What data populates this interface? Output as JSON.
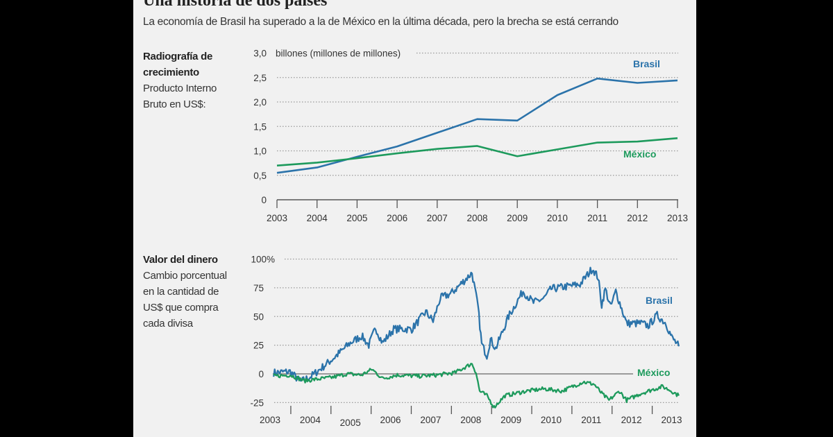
{
  "title": "Una historia de dos países",
  "subtitle": "La economía de Brasil ha superado a la de México en la última década, pero la brecha se está cerrando",
  "colors": {
    "brasil": "#2b73aa",
    "mexico": "#1d9a5c",
    "background": "#f1f1f1"
  },
  "chart_data": [
    {
      "type": "line",
      "heading": "Radiografía de crecimiento",
      "description": [
        "Producto Interno",
        "Bruto en US$:"
      ],
      "heading_lines": [
        "Radiografía de",
        "crecimiento"
      ],
      "unit_label": "billones (millones de millones)",
      "ylim": [
        0,
        3.0
      ],
      "yticks": [
        0,
        0.5,
        1.0,
        1.5,
        2.0,
        2.5,
        3.0
      ],
      "ytick_labels": [
        "0",
        "0,5",
        "1,0",
        "1,5",
        "2,0",
        "2,5",
        "3,0"
      ],
      "xlim": [
        2003,
        2013
      ],
      "x": [
        2003,
        2004,
        2005,
        2006,
        2007,
        2008,
        2009,
        2010,
        2011,
        2012,
        2013
      ],
      "xtick_labels": [
        "2003",
        "2004",
        "2005",
        "2006",
        "2007",
        "2008",
        "2009",
        "2010",
        "2011",
        "2012",
        "2013"
      ],
      "grid": "horizontal dotted",
      "series": [
        {
          "name": "Brasil",
          "values": [
            0.55,
            0.66,
            0.88,
            1.09,
            1.37,
            1.65,
            1.62,
            2.14,
            2.48,
            2.39,
            2.44
          ]
        },
        {
          "name": "México",
          "values": [
            0.7,
            0.76,
            0.85,
            0.95,
            1.04,
            1.1,
            0.89,
            1.03,
            1.17,
            1.19,
            1.26
          ]
        }
      ]
    },
    {
      "type": "line",
      "heading": "Valor del dinero",
      "description": [
        "Cambio porcentual",
        "en la cantidad de",
        "US$ que compra",
        "cada divisa"
      ],
      "ylim": [
        -25,
        100
      ],
      "yticks": [
        -25,
        0,
        25,
        50,
        75,
        100
      ],
      "ytick_labels": [
        "-25",
        "0",
        "25",
        "50",
        "75",
        "100%"
      ],
      "xlim": [
        2003,
        2013.2
      ],
      "xtick_labels": [
        "2003",
        "2004",
        "2005",
        "2006",
        "2007",
        "2008",
        "2009",
        "2010",
        "2011",
        "2012",
        "2013"
      ],
      "grid": "horizontal dotted",
      "series": [
        {
          "name": "Brasil",
          "x": [
            2003.09,
            2003.5,
            2003.76,
            2004.03,
            2004.56,
            2005.0,
            2005.28,
            2005.46,
            2005.63,
            2005.8,
            2006.08,
            2006.53,
            2006.88,
            2007.06,
            2007.24,
            2007.51,
            2008.03,
            2008.18,
            2008.27,
            2008.4,
            2008.49,
            2008.62,
            2008.94,
            2009.3,
            2009.56,
            2009.83,
            2010.0,
            2010.37,
            2010.72,
            2011.03,
            2011.17,
            2011.26,
            2011.35,
            2011.48,
            2011.61,
            2011.88,
            2012.24,
            2012.42,
            2012.64,
            2012.86,
            2013.0,
            2013.18
          ],
          "values": [
            1,
            2,
            -7,
            -2,
            13,
            27,
            33,
            25,
            40,
            27,
            39,
            39,
            54,
            46,
            66,
            70,
            88,
            58,
            26,
            16,
            30,
            22,
            50,
            72,
            62,
            66,
            74,
            76,
            78,
            92,
            84,
            60,
            74,
            58,
            72,
            44,
            44,
            42,
            51,
            44,
            32,
            24
          ]
        },
        {
          "name": "México",
          "x": [
            2003.09,
            2003.5,
            2003.85,
            2004.56,
            2004.92,
            2005.28,
            2005.54,
            2005.8,
            2006.17,
            2006.7,
            2007.15,
            2007.6,
            2008.03,
            2008.13,
            2008.22,
            2008.4,
            2008.58,
            2008.85,
            2009.38,
            2009.83,
            2010.27,
            2010.8,
            2011.07,
            2011.26,
            2011.44,
            2011.7,
            2011.88,
            2012.24,
            2012.77,
            2013.0,
            2013.18
          ],
          "values": [
            -2,
            -1,
            -6,
            -3,
            0,
            -1,
            4,
            -4,
            -1,
            -2,
            -1,
            1,
            9,
            1,
            -15,
            -19,
            -29,
            -19,
            -15,
            -13,
            -15,
            -7,
            -9,
            -17,
            -23,
            -15,
            -23,
            -17,
            -11,
            -15,
            -19
          ]
        }
      ]
    }
  ]
}
